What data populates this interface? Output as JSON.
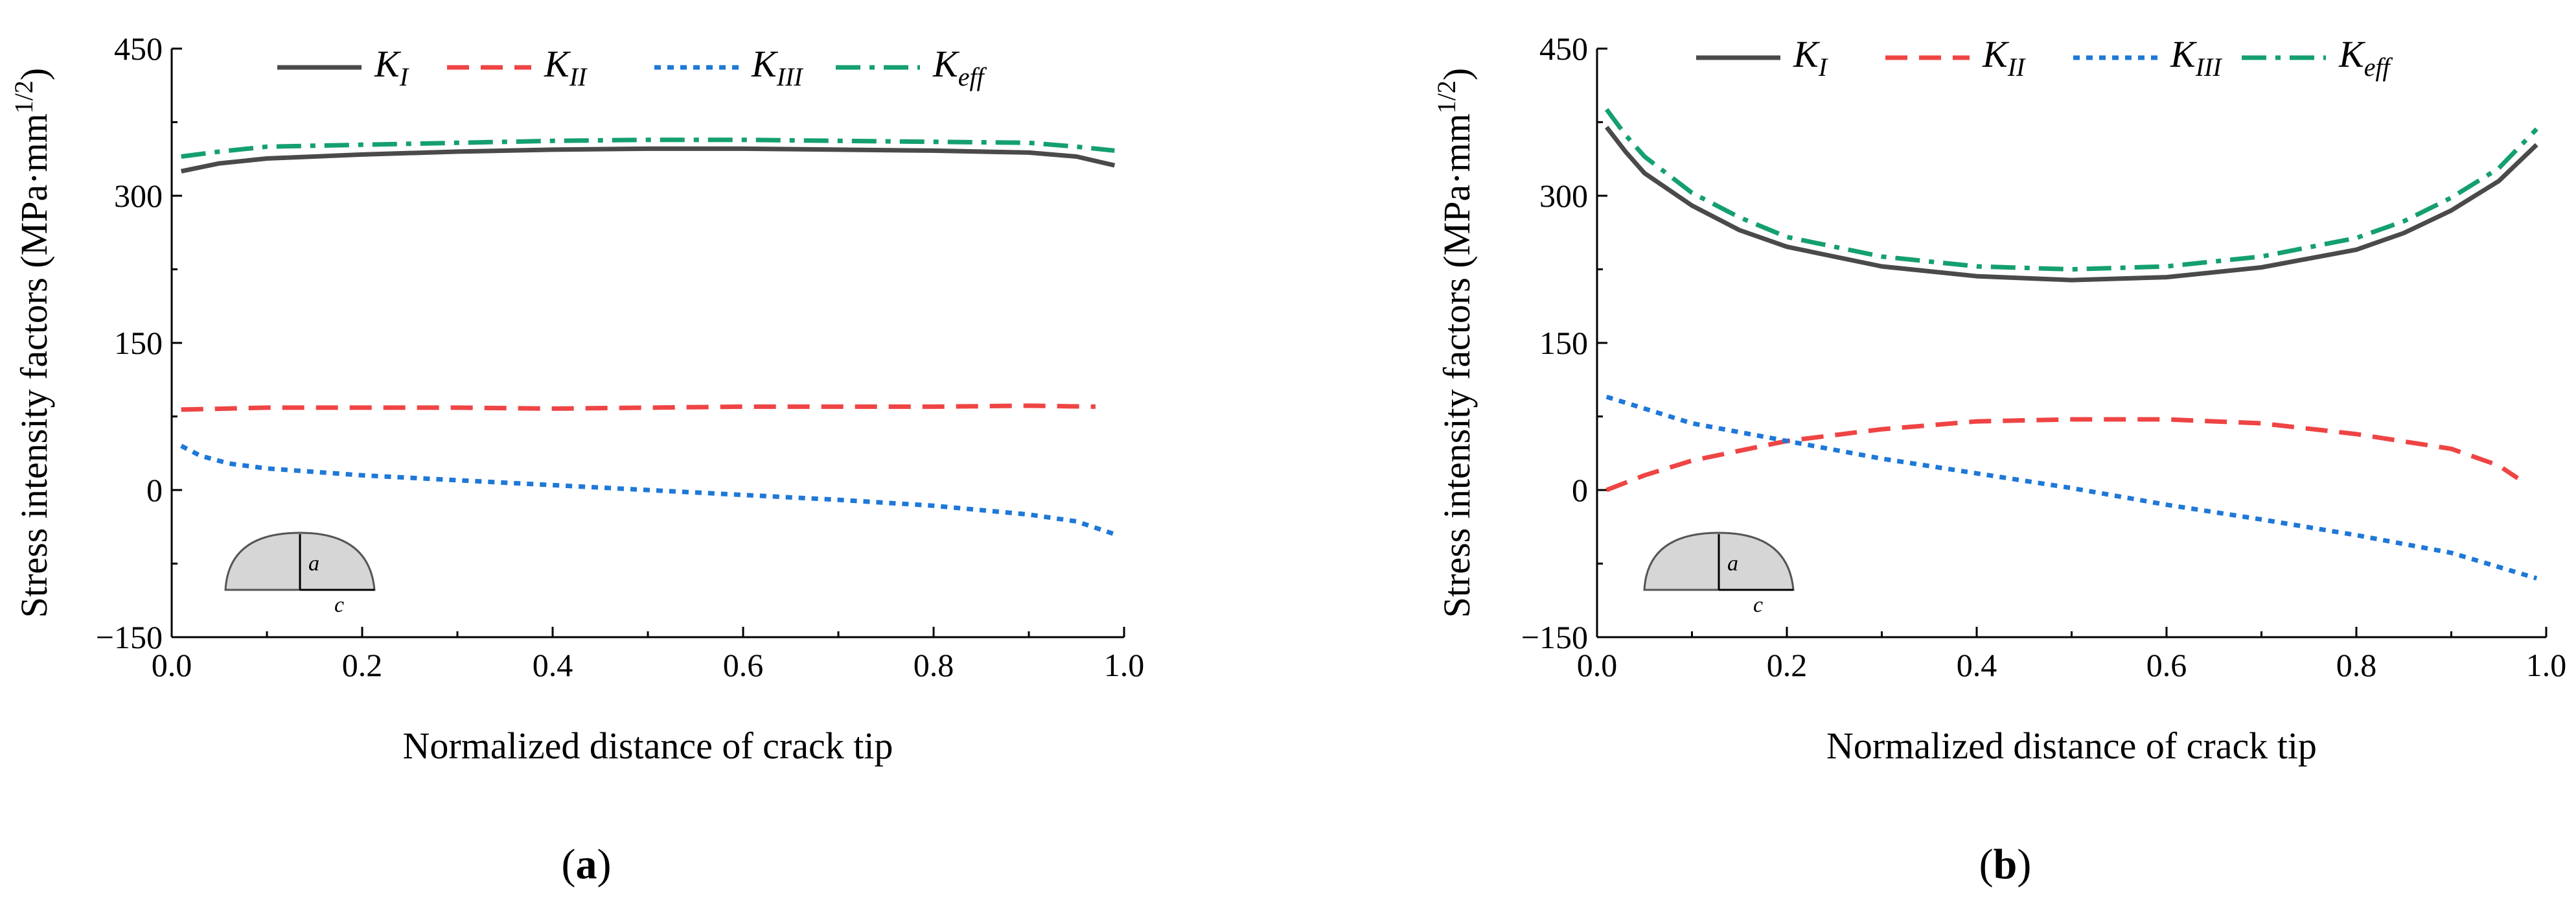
{
  "colors": {
    "K_I": "#4a4a4a",
    "K_II": "#ef4444",
    "K_III": "#1e78d8",
    "K_eff": "#14a06e"
  },
  "chart_data": [
    {
      "panel": "a",
      "panel_label": "a",
      "type": "line",
      "xlabel": "Normalized distance of crack tip",
      "ylabel": "Stress intensity factors (MPa·mm",
      "ylabel_sup": "1/2",
      "ylabel_close": ")",
      "xlim": [
        0.0,
        1.0
      ],
      "ylim": [
        -150,
        450
      ],
      "xticks": [
        0.0,
        0.2,
        0.4,
        0.6,
        0.8,
        1.0
      ],
      "xtick_labels": [
        "0.0",
        "0.2",
        "0.4",
        "0.6",
        "0.8",
        "1.0"
      ],
      "yticks": [
        -150,
        0,
        150,
        300,
        450
      ],
      "ytick_labels": [
        "−150",
        "0",
        "150",
        "300",
        "450"
      ],
      "legend": [
        {
          "key": "K_I",
          "base": "K",
          "sub": "I",
          "style": "solid"
        },
        {
          "key": "K_II",
          "base": "K",
          "sub": "II",
          "style": "dash"
        },
        {
          "key": "K_III",
          "base": "K",
          "sub": "III",
          "style": "dot"
        },
        {
          "key": "K_eff",
          "base": "K",
          "sub": "eff",
          "style": "dashdot"
        }
      ],
      "inset": {
        "a_label": "a",
        "c_label": "c"
      },
      "series": [
        {
          "key": "K_I",
          "x": [
            0.01,
            0.05,
            0.1,
            0.2,
            0.3,
            0.4,
            0.5,
            0.6,
            0.7,
            0.8,
            0.9,
            0.95,
            0.99
          ],
          "y": [
            325,
            333,
            338,
            342,
            345,
            347,
            348,
            348,
            347,
            346,
            344,
            340,
            331
          ]
        },
        {
          "key": "K_II",
          "x": [
            0.01,
            0.1,
            0.2,
            0.3,
            0.4,
            0.5,
            0.6,
            0.7,
            0.8,
            0.9,
            0.97
          ],
          "y": [
            82,
            84,
            84,
            84,
            83,
            84,
            85,
            85,
            85,
            86,
            85
          ]
        },
        {
          "key": "K_III",
          "x": [
            0.01,
            0.03,
            0.06,
            0.1,
            0.2,
            0.3,
            0.4,
            0.5,
            0.6,
            0.7,
            0.8,
            0.9,
            0.95,
            0.99
          ],
          "y": [
            45,
            35,
            27,
            22,
            15,
            10,
            5,
            0,
            -5,
            -10,
            -16,
            -25,
            -32,
            -45
          ]
        },
        {
          "key": "K_eff",
          "x": [
            0.01,
            0.05,
            0.1,
            0.2,
            0.3,
            0.4,
            0.5,
            0.6,
            0.7,
            0.8,
            0.9,
            0.95,
            0.99
          ],
          "y": [
            340,
            345,
            350,
            352,
            354,
            356,
            357,
            357,
            356,
            355,
            354,
            350,
            346
          ]
        }
      ]
    },
    {
      "panel": "b",
      "panel_label": "b",
      "type": "line",
      "xlabel": "Normalized distance of crack tip",
      "ylabel": "Stress intensity factors (MPa·mm",
      "ylabel_sup": "1/2",
      "ylabel_close": ")",
      "xlim": [
        0.0,
        1.0
      ],
      "ylim": [
        -150,
        450
      ],
      "xticks": [
        0.0,
        0.2,
        0.4,
        0.6,
        0.8,
        1.0
      ],
      "xtick_labels": [
        "0.0",
        "0.2",
        "0.4",
        "0.6",
        "0.8",
        "1.0"
      ],
      "yticks": [
        -150,
        0,
        150,
        300,
        450
      ],
      "ytick_labels": [
        "−150",
        "0",
        "150",
        "300",
        "450"
      ],
      "legend": [
        {
          "key": "K_I",
          "base": "K",
          "sub": "I",
          "style": "solid"
        },
        {
          "key": "K_II",
          "base": "K",
          "sub": "II",
          "style": "dash"
        },
        {
          "key": "K_III",
          "base": "K",
          "sub": "III",
          "style": "dot"
        },
        {
          "key": "K_eff",
          "base": "K",
          "sub": "eff",
          "style": "dashdot"
        }
      ],
      "inset": {
        "a_label": "a",
        "c_label": "c"
      },
      "series": [
        {
          "key": "K_I",
          "x": [
            0.01,
            0.03,
            0.05,
            0.1,
            0.15,
            0.2,
            0.3,
            0.4,
            0.5,
            0.6,
            0.7,
            0.8,
            0.85,
            0.9,
            0.95,
            0.99
          ],
          "y": [
            370,
            345,
            323,
            290,
            265,
            248,
            228,
            218,
            214,
            217,
            227,
            245,
            262,
            285,
            315,
            352
          ]
        },
        {
          "key": "K_II",
          "x": [
            0.01,
            0.05,
            0.1,
            0.2,
            0.3,
            0.4,
            0.5,
            0.6,
            0.7,
            0.8,
            0.9,
            0.95,
            0.97
          ],
          "y": [
            0,
            15,
            30,
            50,
            62,
            70,
            72,
            72,
            68,
            57,
            42,
            25,
            12
          ]
        },
        {
          "key": "K_III",
          "x": [
            0.01,
            0.1,
            0.2,
            0.3,
            0.4,
            0.5,
            0.6,
            0.7,
            0.8,
            0.9,
            0.99
          ],
          "y": [
            95,
            68,
            50,
            32,
            17,
            2,
            -15,
            -30,
            -46,
            -64,
            -90
          ]
        },
        {
          "key": "K_eff",
          "x": [
            0.01,
            0.03,
            0.05,
            0.1,
            0.15,
            0.2,
            0.3,
            0.4,
            0.5,
            0.6,
            0.7,
            0.8,
            0.85,
            0.9,
            0.95,
            0.99
          ],
          "y": [
            388,
            362,
            340,
            303,
            278,
            258,
            238,
            228,
            225,
            228,
            238,
            257,
            274,
            298,
            328,
            368
          ]
        }
      ]
    }
  ]
}
